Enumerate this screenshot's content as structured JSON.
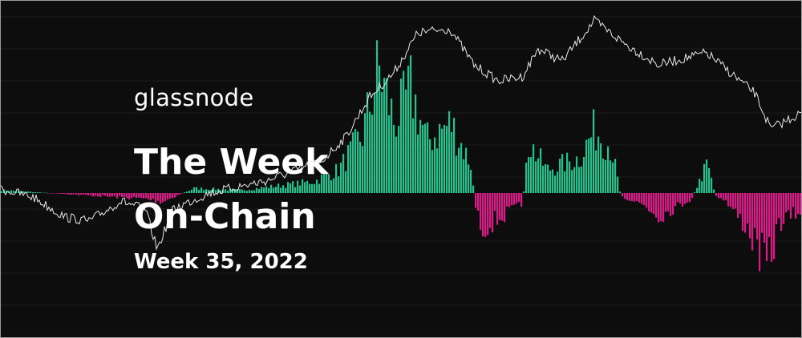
{
  "header": {
    "brand": "glassnode",
    "title_lines": [
      "The Week",
      "On-Chain"
    ],
    "subtitle": "Week 35, 2022"
  }
}
